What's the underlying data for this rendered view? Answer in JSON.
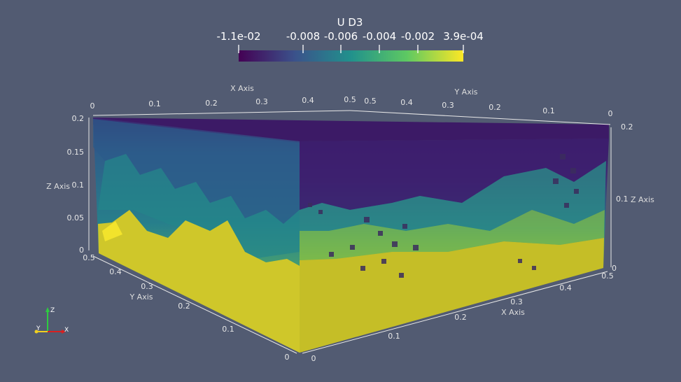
{
  "scalar_bar": {
    "title": "U D3",
    "labels": [
      "-1.1e-02",
      "-0.008",
      "-0.006",
      "-0.004",
      "-0.002",
      "3.9e-04"
    ],
    "colors": [
      "#440154",
      "#3b528b",
      "#21918c",
      "#5ec962",
      "#fde725"
    ]
  },
  "axes": {
    "x_axis_title": "X Axis",
    "y_axis_title": "Y Axis",
    "z_axis_title": "Z Axis",
    "top_x_ticks": [
      "0",
      "0.1",
      "0.2",
      "0.3",
      "0.4",
      "0.5"
    ],
    "top_y_ticks": [
      "0.5",
      "0.4",
      "0.3",
      "0.2",
      "0.1",
      "0"
    ],
    "left_z_ticks": [
      "0.2",
      "0.15",
      "0.1",
      "0.05",
      "0"
    ],
    "right_z_ticks": [
      "0.2",
      "0.1",
      "0"
    ],
    "left_y_ticks": [
      "0.5",
      "0.4",
      "0.3",
      "0.2",
      "0.1",
      "0"
    ],
    "bottom_x_ticks": [
      "0",
      "0.1",
      "0.2",
      "0.3",
      "0.4",
      "0.5"
    ]
  },
  "orientation_triad": {
    "x": "X",
    "y": "Y",
    "z": "Z"
  }
}
